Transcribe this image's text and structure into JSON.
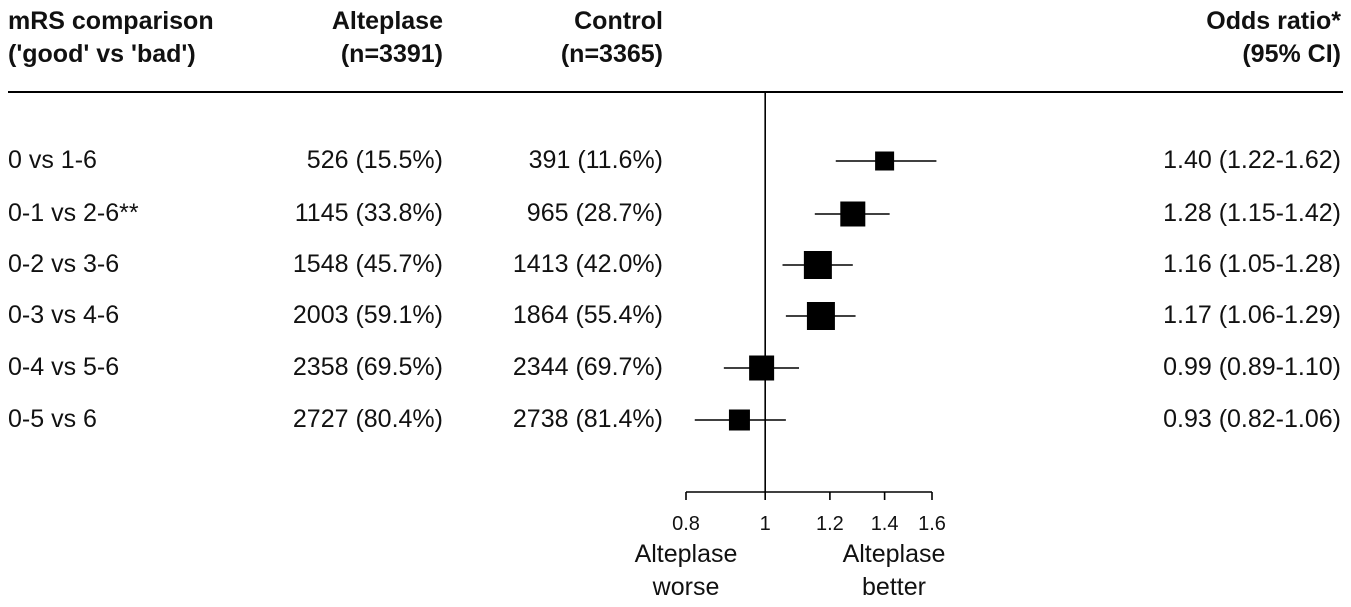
{
  "header": {
    "col1": [
      "mRS comparison",
      "('good' vs 'bad')"
    ],
    "col2": [
      "Alteplase",
      "(n=3391)"
    ],
    "col3": [
      "Control",
      "(n=3365)"
    ],
    "col4": [
      "Odds ratio*",
      "(95% CI)"
    ]
  },
  "rows": [
    {
      "label": "0 vs 1-6",
      "alteplase": "526 (15.5%)",
      "control": "391 (11.6%)",
      "or_text": "1.40 (1.22-1.62)"
    },
    {
      "label": "0-1 vs 2-6**",
      "alteplase": "1145 (33.8%)",
      "control": "965 (28.7%)",
      "or_text": "1.28 (1.15-1.42)"
    },
    {
      "label": "0-2 vs 3-6",
      "alteplase": "1548 (45.7%)",
      "control": "1413 (42.0%)",
      "or_text": "1.16 (1.05-1.28)"
    },
    {
      "label": "0-3 vs 4-6",
      "alteplase": "2003 (59.1%)",
      "control": "1864 (55.4%)",
      "or_text": "1.17 (1.06-1.29)"
    },
    {
      "label": "0-4 vs 5-6",
      "alteplase": "2358 (69.5%)",
      "control": "2344 (69.7%)",
      "or_text": "0.99 (0.89-1.10)"
    },
    {
      "label": "0-5 vs 6",
      "alteplase": "2727 (80.4%)",
      "control": "2738 (81.4%)",
      "or_text": "0.93 (0.82-1.06)"
    }
  ],
  "footer": {
    "left": [
      "Alteplase",
      "worse"
    ],
    "right": [
      "Alteplase",
      "better"
    ]
  },
  "chart_data": {
    "type": "forest",
    "categories": [
      "0 vs 1-6",
      "0-1 vs 2-6**",
      "0-2 vs 3-6",
      "0-3 vs 4-6",
      "0-4 vs 5-6",
      "0-5 vs 6"
    ],
    "or": [
      1.4,
      1.28,
      1.16,
      1.17,
      0.99,
      0.93
    ],
    "ci_low": [
      1.22,
      1.15,
      1.05,
      1.06,
      0.89,
      0.82
    ],
    "ci_high": [
      1.62,
      1.42,
      1.28,
      1.29,
      1.1,
      1.06
    ],
    "x_scale": "log",
    "x_ticks": [
      0.8,
      1,
      1.2,
      1.4,
      1.6
    ],
    "x_tick_labels": [
      "0.8",
      "1",
      "1.2",
      "1.4",
      "1.6"
    ],
    "reference_line": 1,
    "xlim": [
      0.8,
      1.6
    ]
  }
}
